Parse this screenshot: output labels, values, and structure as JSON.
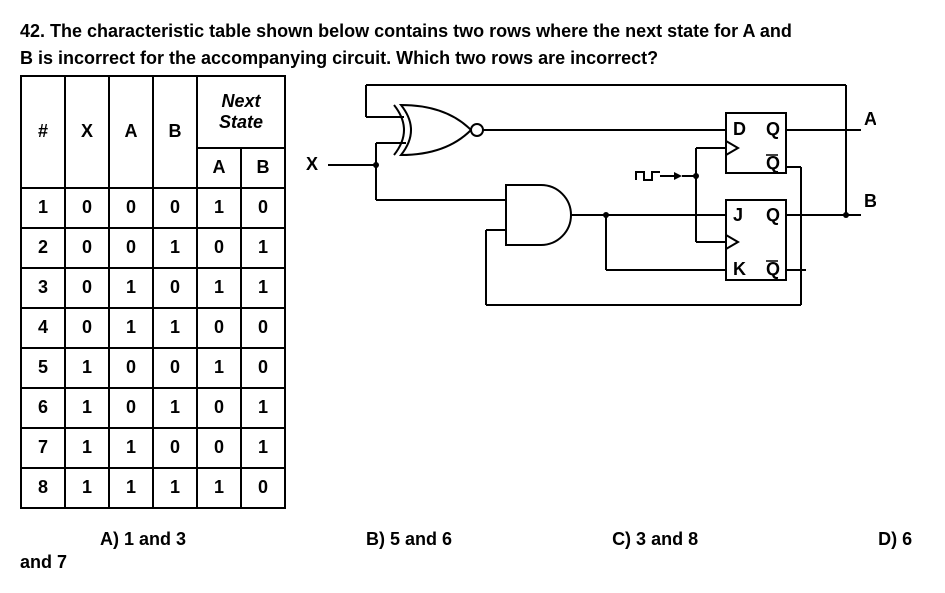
{
  "question": {
    "number": "42.",
    "text_line1": "42. The characteristic table shown below contains two rows where the next state for A and",
    "text_line2": "B is incorrect for the accompanying circuit. Which two rows are incorrect?"
  },
  "table": {
    "headers": {
      "c1": "#",
      "c2": "X",
      "c3": "A",
      "c4": "B",
      "next_state": "Next\nState",
      "ns_a": "A",
      "ns_b": "B"
    },
    "rows": [
      {
        "n": "1",
        "x": "0",
        "a": "0",
        "b": "0",
        "na": "1",
        "nb": "0"
      },
      {
        "n": "2",
        "x": "0",
        "a": "0",
        "b": "1",
        "na": "0",
        "nb": "1"
      },
      {
        "n": "3",
        "x": "0",
        "a": "1",
        "b": "0",
        "na": "1",
        "nb": "1"
      },
      {
        "n": "4",
        "x": "0",
        "a": "1",
        "b": "1",
        "na": "0",
        "nb": "0"
      },
      {
        "n": "5",
        "x": "1",
        "a": "0",
        "b": "0",
        "na": "1",
        "nb": "0"
      },
      {
        "n": "6",
        "x": "1",
        "a": "0",
        "b": "1",
        "na": "0",
        "nb": "1"
      },
      {
        "n": "7",
        "x": "1",
        "a": "1",
        "b": "0",
        "na": "0",
        "nb": "1"
      },
      {
        "n": "8",
        "x": "1",
        "a": "1",
        "b": "1",
        "na": "1",
        "nb": "0"
      }
    ]
  },
  "circuit": {
    "input_label": "X",
    "output_a_label": "A",
    "output_b_label": "B",
    "ff1": {
      "d": "D",
      "q": "Q",
      "qbar": "Q",
      "qbar_overline": true
    },
    "ff2": {
      "j": "J",
      "k": "K",
      "q": "Q",
      "qbar": "Q",
      "qbar_overline": true
    },
    "gate1": "nor",
    "gate2": "and",
    "colors": {
      "stroke": "#000000",
      "fill": "#ffffff",
      "bg": "#ffffff"
    },
    "line_width": 2
  },
  "options": {
    "a": "A) 1 and 3",
    "b": "B) 5 and 6",
    "c": "C) 3 and 8",
    "d": "D) 6",
    "and7": "and 7"
  }
}
